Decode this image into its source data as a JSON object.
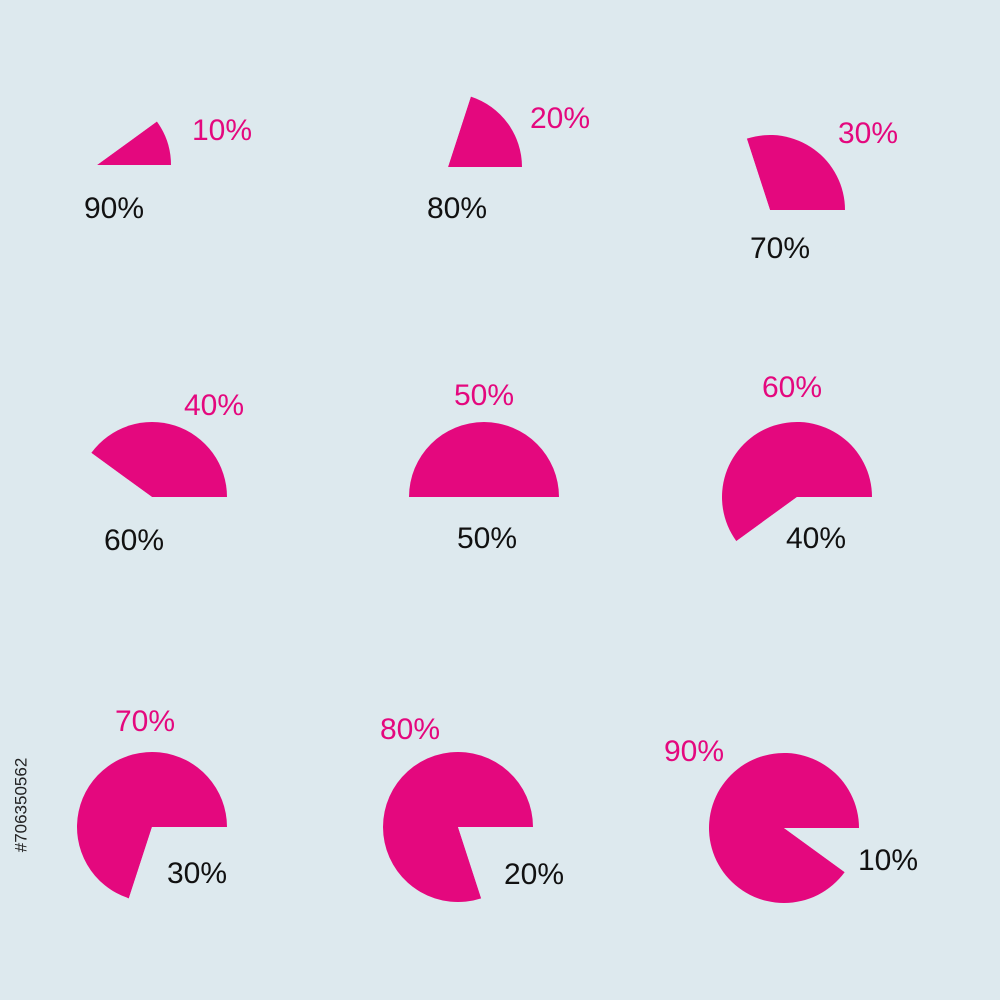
{
  "chart_data": [
    {
      "type": "pie",
      "values": [
        10,
        90
      ],
      "value_labels": [
        "10%",
        "90%"
      ],
      "colors": [
        "#e4087e",
        "#dde9ee"
      ]
    },
    {
      "type": "pie",
      "values": [
        20,
        80
      ],
      "value_labels": [
        "20%",
        "80%"
      ],
      "colors": [
        "#e4087e",
        "#dde9ee"
      ]
    },
    {
      "type": "pie",
      "values": [
        30,
        70
      ],
      "value_labels": [
        "30%",
        "70%"
      ],
      "colors": [
        "#e4087e",
        "#dde9ee"
      ]
    },
    {
      "type": "pie",
      "values": [
        40,
        60
      ],
      "value_labels": [
        "40%",
        "60%"
      ],
      "colors": [
        "#e4087e",
        "#dde9ee"
      ]
    },
    {
      "type": "pie",
      "values": [
        50,
        50
      ],
      "value_labels": [
        "50%",
        "50%"
      ],
      "colors": [
        "#e4087e",
        "#dde9ee"
      ]
    },
    {
      "type": "pie",
      "values": [
        60,
        40
      ],
      "value_labels": [
        "60%",
        "40%"
      ],
      "colors": [
        "#e4087e",
        "#dde9ee"
      ]
    },
    {
      "type": "pie",
      "values": [
        70,
        30
      ],
      "value_labels": [
        "70%",
        "30%"
      ],
      "colors": [
        "#e4087e",
        "#dde9ee"
      ]
    },
    {
      "type": "pie",
      "values": [
        80,
        20
      ],
      "value_labels": [
        "80%",
        "20%"
      ],
      "colors": [
        "#e4087e",
        "#dde9ee"
      ]
    },
    {
      "type": "pie",
      "values": [
        90,
        10
      ],
      "value_labels": [
        "90%",
        "10%"
      ],
      "colors": [
        "#e4087e",
        "#dde9ee"
      ]
    }
  ],
  "side_id": "#706350562"
}
